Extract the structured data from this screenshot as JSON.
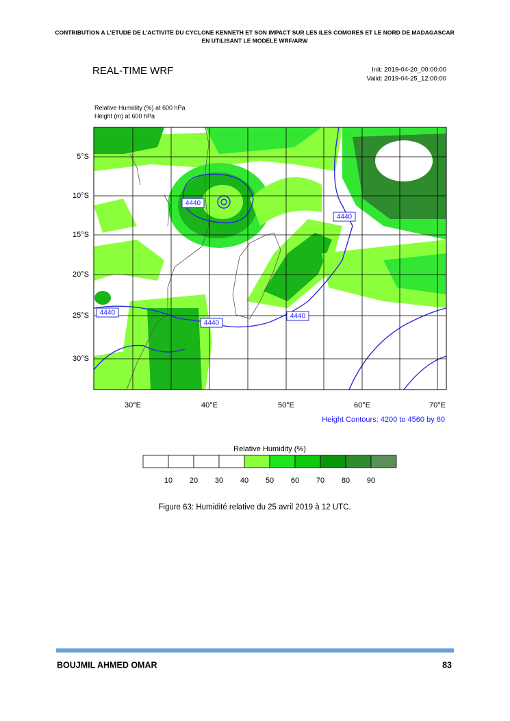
{
  "header": {
    "line1": "CONTRIBUTION A L’ETUDE DE L’ACTIVITE DU CYCLONE KENNETH ET SON IMPACT SUR LES ILES COMORES ET LE NORD DE MADAGASCAR",
    "line2": "EN UTILISANT LE MODELE WRF/ARW"
  },
  "figure": {
    "title": "REAL-TIME WRF",
    "init": "Init: 2019-04-20_00:00:00",
    "valid": "Valid: 2019-04-25_12:00:00",
    "field_lines": [
      "Relative Humidity  (%)    at    600 hPa",
      "Height  (m)    at  600 hPa"
    ],
    "lat_labels": [
      "5°S",
      "10°S",
      "15°S",
      "20°S",
      "25°S",
      "30°S"
    ],
    "lon_labels": [
      "30°E",
      "40°E",
      "50°E",
      "60°E",
      "70°E"
    ],
    "contour_labels": [
      "4440",
      "4440",
      "4440",
      "4440",
      "4440"
    ],
    "contour_note": "Height Contours: 4200 to 4560 by 60",
    "colorbar": {
      "title": "Relative Humidity  (%)",
      "labels": [
        10,
        20,
        30,
        40,
        50,
        60,
        70,
        80,
        90
      ]
    }
  },
  "caption": "Figure 63: Humidité relative du 25 avril 2019 à 12 UTC.",
  "footer": {
    "author": "BOUJMIL AHMED OMAR",
    "page": 83
  }
}
